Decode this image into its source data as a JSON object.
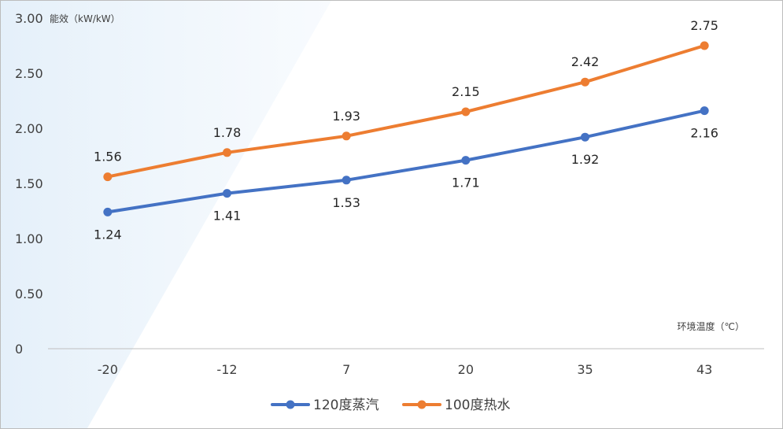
{
  "chart_data": {
    "type": "line",
    "title": "",
    "xlabel": "环境温度（℃）",
    "ylabel": "能效（kW/kW）",
    "categories": [
      "-20",
      "-12",
      "7",
      "20",
      "35",
      "43"
    ],
    "ylim": [
      0,
      3.0
    ],
    "yticks": [
      "0",
      "0.50",
      "1.00",
      "1.50",
      "2.00",
      "2.50",
      "3.00"
    ],
    "grid": false,
    "legend_position": "bottom",
    "series": [
      {
        "name": "120度蒸汽",
        "color": "#4472C4",
        "values": [
          1.24,
          1.41,
          1.53,
          1.71,
          1.92,
          2.16
        ],
        "labels": [
          "1.24",
          "1.41",
          "1.53",
          "1.71",
          "1.92",
          "2.16"
        ],
        "label_position": "below"
      },
      {
        "name": "100度热水",
        "color": "#ED7D31",
        "values": [
          1.56,
          1.78,
          1.93,
          2.15,
          2.42,
          2.75
        ],
        "labels": [
          "1.56",
          "1.78",
          "1.93",
          "2.15",
          "2.42",
          "2.75"
        ],
        "label_position": "above"
      }
    ]
  }
}
